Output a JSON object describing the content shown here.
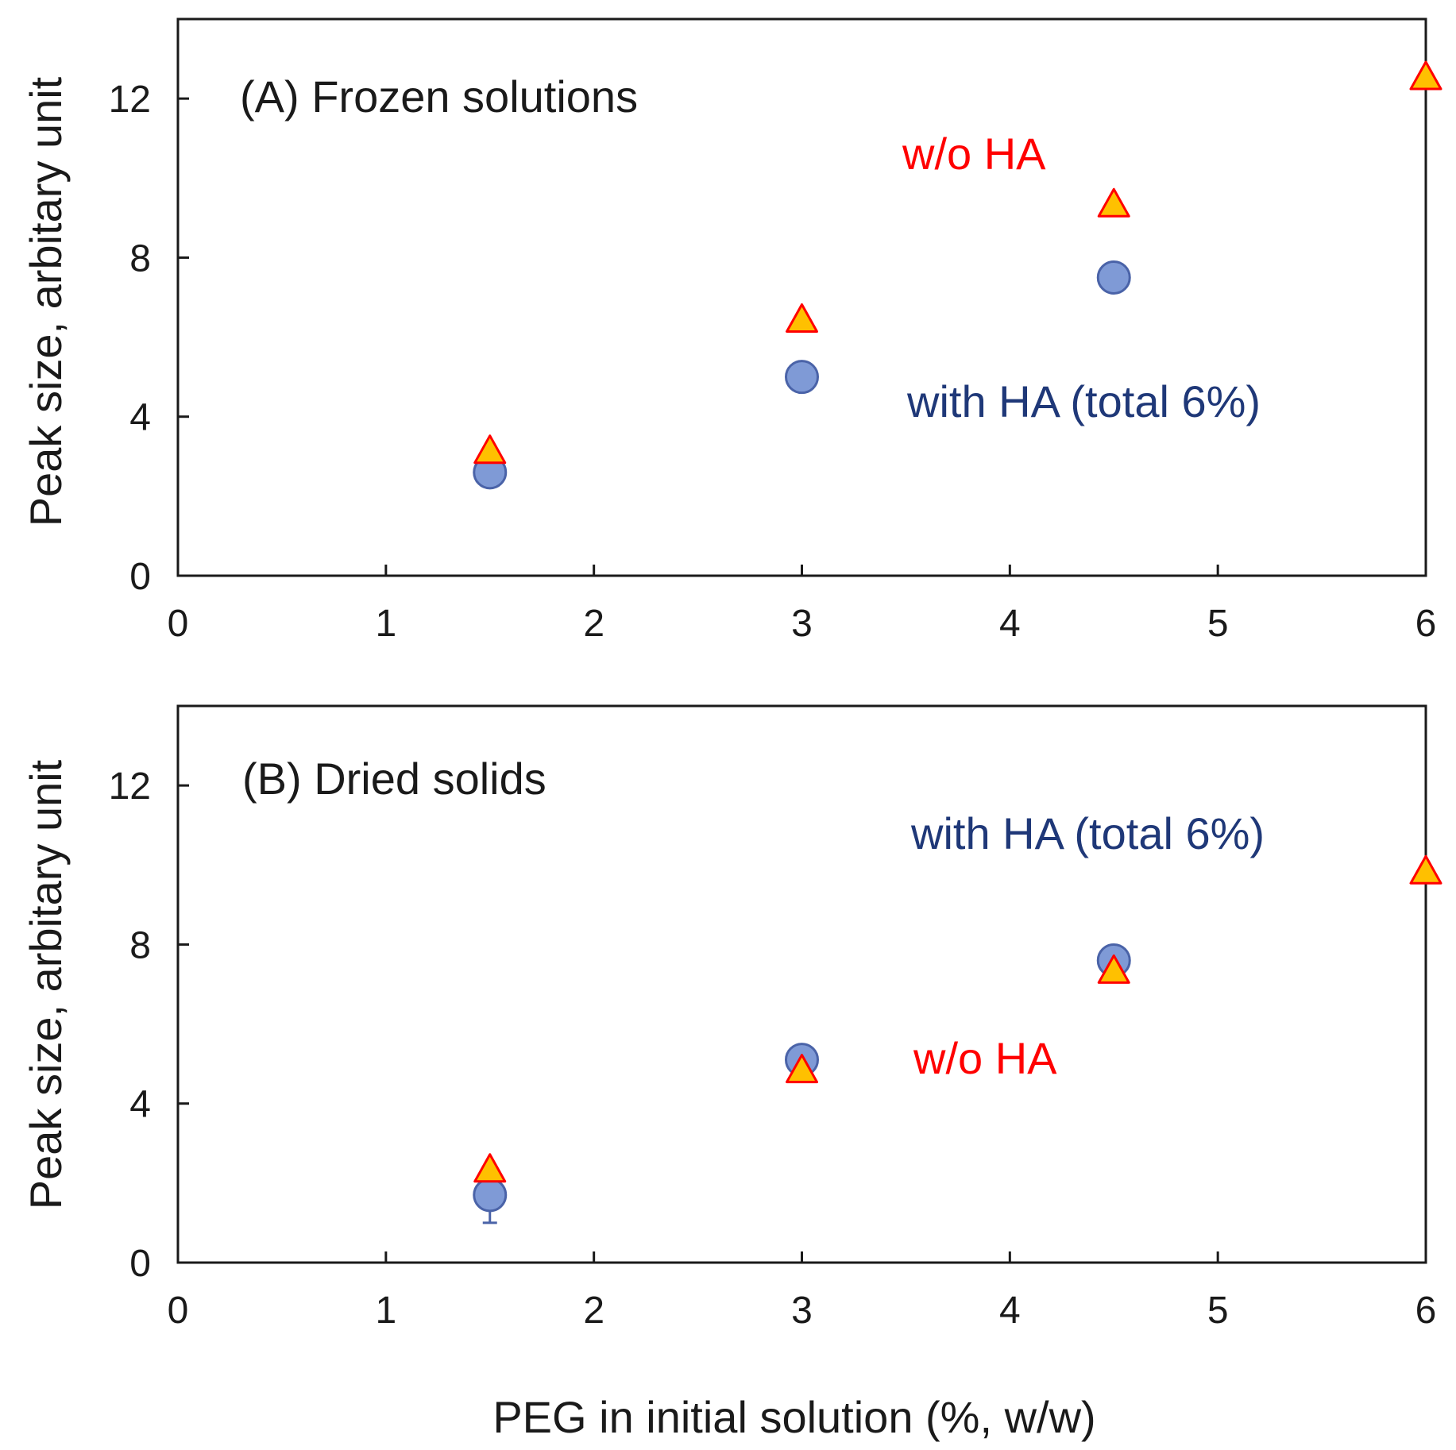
{
  "colors": {
    "with_ha_fill": "#7f9ad6",
    "with_ha_stroke": "#4a63a8",
    "without_ha_fill": "#ffc000",
    "without_ha_stroke": "#ff0000",
    "with_ha_text": "#1f3878",
    "without_ha_text": "#ff0000",
    "axis": "#1a1a1a"
  },
  "shared": {
    "xlabel": "PEG in initial solution (%, w/w)",
    "ylabel": "Peak size, arbitary unit"
  },
  "chart_data": [
    {
      "type": "scatter",
      "title": "(A) Frozen solutions",
      "xlabel": "",
      "ylabel": "Peak size, arbitary unit",
      "xlim": [
        0,
        6
      ],
      "ylim": [
        0,
        14
      ],
      "xticks": [
        "0",
        "1",
        "2",
        "3",
        "4",
        "5",
        "6"
      ],
      "yticks": [
        "0",
        "4",
        "8",
        "12"
      ],
      "series": [
        {
          "name": "with HA (total 6%)",
          "marker": "circle",
          "points": [
            {
              "x": 1.5,
              "y": 2.6
            },
            {
              "x": 3.0,
              "y": 5.0
            },
            {
              "x": 4.5,
              "y": 7.5
            }
          ]
        },
        {
          "name": "w/o HA",
          "marker": "triangle",
          "points": [
            {
              "x": 1.5,
              "y": 3.1
            },
            {
              "x": 3.0,
              "y": 6.4
            },
            {
              "x": 4.5,
              "y": 9.3
            },
            {
              "x": 6.0,
              "y": 12.5
            }
          ]
        }
      ],
      "annotations": [
        {
          "text": "w/o HA",
          "series": "w/o HA"
        },
        {
          "text": "with HA (total 6%)",
          "series": "with HA (total 6%)"
        }
      ]
    },
    {
      "type": "scatter",
      "title": "(B) Dried solids",
      "xlabel": "PEG in initial solution (%, w/w)",
      "ylabel": "Peak size, arbitary unit",
      "xlim": [
        0,
        6
      ],
      "ylim": [
        0,
        14
      ],
      "xticks": [
        "0",
        "1",
        "2",
        "3",
        "4",
        "5",
        "6"
      ],
      "yticks": [
        "0",
        "4",
        "8",
        "12"
      ],
      "series": [
        {
          "name": "with HA (total 6%)",
          "marker": "circle",
          "points": [
            {
              "x": 1.5,
              "y": 1.7,
              "err_low": 0.7
            },
            {
              "x": 3.0,
              "y": 5.1
            },
            {
              "x": 4.5,
              "y": 7.6
            }
          ]
        },
        {
          "name": "w/o HA",
          "marker": "triangle",
          "points": [
            {
              "x": 1.5,
              "y": 2.3
            },
            {
              "x": 3.0,
              "y": 4.8
            },
            {
              "x": 4.5,
              "y": 7.3
            },
            {
              "x": 6.0,
              "y": 9.8
            }
          ]
        }
      ],
      "annotations": [
        {
          "text": "with HA (total 6%)",
          "series": "with HA (total 6%)"
        },
        {
          "text": "w/o HA",
          "series": "w/o HA"
        }
      ]
    }
  ]
}
